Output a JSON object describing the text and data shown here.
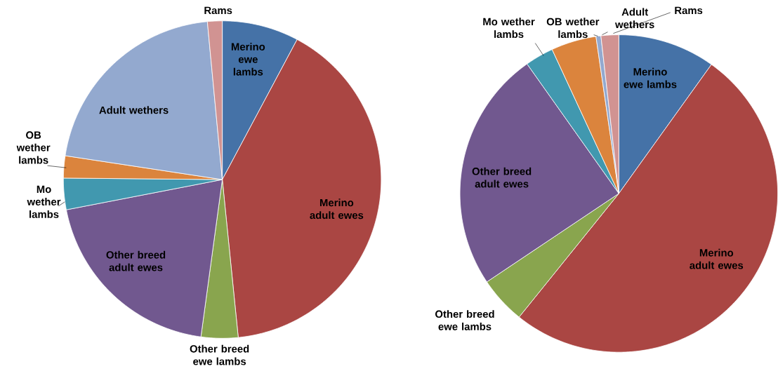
{
  "chart_data": [
    {
      "type": "pie",
      "categories": [
        "Merino ewe lambs",
        "Merino adult ewes",
        "Other breed ewe lambs",
        "Other breed adult ewes",
        "Mo wether lambs",
        "OB wether lambs",
        "Adult wethers",
        "Rams"
      ],
      "values": [
        7.8,
        40.6,
        3.75,
        19.8,
        3.2,
        2.25,
        21.1,
        1.5
      ],
      "colors": [
        "#4572a7",
        "#aa4643",
        "#89a54e",
        "#71588f",
        "#4198af",
        "#db843d",
        "#93a9cf",
        "#d19392"
      ]
    },
    {
      "type": "pie",
      "categories": [
        "Merino ewe lambs",
        "Merino adult ewes",
        "Other breed ewe lambs",
        "Other breed adult ewes",
        "Mo wether lambs",
        "OB wether lambs",
        "Adult wethers",
        "Rams"
      ],
      "values": [
        9.9,
        50.9,
        4.8,
        24.6,
        2.9,
        4.6,
        0.5,
        1.8
      ],
      "colors": [
        "#4572a7",
        "#aa4643",
        "#89a54e",
        "#71588f",
        "#4198af",
        "#db843d",
        "#93a9cf",
        "#d19392"
      ]
    }
  ]
}
